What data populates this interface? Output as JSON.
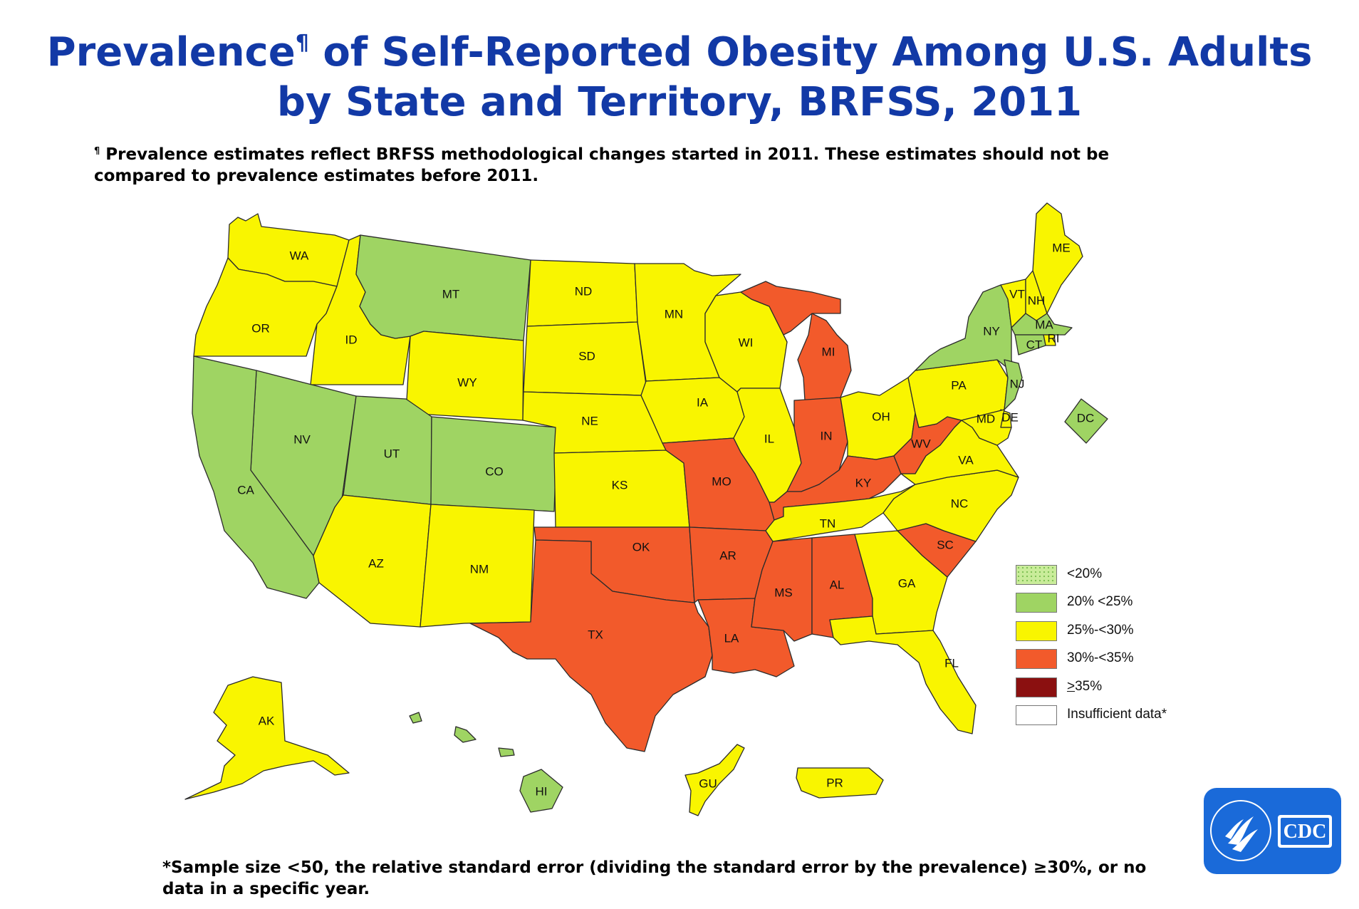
{
  "title": {
    "line1_a": "Prevalence",
    "line1_mark": "¶",
    "line1_b": " of Self-Reported Obesity Among U.S. Adults",
    "line2": "by State and Territory, BRFSS, 2011"
  },
  "footnote": {
    "mark": "¶",
    "text": " Prevalence estimates reflect BRFSS methodological changes started in 2011. These estimates should not be compared to prevalence estimates before 2011."
  },
  "bottom_note": "*Sample size <50, the relative standard error (dividing the standard error by the prevalence) ≥30%, or no data in a specific year.",
  "colors": {
    "lt20": "#c9ec9a",
    "c20_25": "#9fd463",
    "c25_30": "#f9f500",
    "c30_35": "#f25a2b",
    "ge35": "#8b1010",
    "insufficient": "#ffffff",
    "title_blue": "#1239a6",
    "cdc_blue": "#1a6ad9"
  },
  "legend": [
    {
      "key": "lt20",
      "label": "<20%"
    },
    {
      "key": "c20_25",
      "label": "20% <25%"
    },
    {
      "key": "c25_30",
      "label": "25%-<30%"
    },
    {
      "key": "c30_35",
      "label": "30%-<35%"
    },
    {
      "key": "ge35",
      "label": "≥35%"
    },
    {
      "key": "insufficient",
      "label": "Insufficient data*"
    }
  ],
  "states": {
    "WA": "c25_30",
    "OR": "c25_30",
    "CA": "c20_25",
    "ID": "c25_30",
    "NV": "c20_25",
    "MT": "c20_25",
    "WY": "c25_30",
    "UT": "c20_25",
    "CO": "c20_25",
    "AZ": "c25_30",
    "NM": "c25_30",
    "ND": "c25_30",
    "SD": "c25_30",
    "NE": "c25_30",
    "KS": "c25_30",
    "OK": "c30_35",
    "TX": "c30_35",
    "MN": "c25_30",
    "IA": "c25_30",
    "MO": "c30_35",
    "AR": "c30_35",
    "LA": "c30_35",
    "WI": "c25_30",
    "IL": "c25_30",
    "MI": "c30_35",
    "IN": "c30_35",
    "OH": "c25_30",
    "KY": "c30_35",
    "TN": "c25_30",
    "MS": "c30_35",
    "AL": "c30_35",
    "GA": "c25_30",
    "FL": "c25_30",
    "SC": "c30_35",
    "NC": "c25_30",
    "VA": "c25_30",
    "WV": "c30_35",
    "PA": "c25_30",
    "NY": "c20_25",
    "VT": "c25_30",
    "NH": "c25_30",
    "ME": "c25_30",
    "MA": "c20_25",
    "RI": "c25_30",
    "CT": "c20_25",
    "NJ": "c20_25",
    "DE": "c25_30",
    "MD": "c25_30",
    "DC": "c20_25",
    "AK": "c25_30",
    "HI": "c20_25",
    "GU": "c25_30",
    "PR": "c25_30"
  },
  "state_labels": {
    "WA": "WA",
    "OR": "OR",
    "CA": "CA",
    "ID": "ID",
    "NV": "NV",
    "MT": "MT",
    "WY": "WY",
    "UT": "UT",
    "CO": "CO",
    "AZ": "AZ",
    "NM": "NM",
    "ND": "ND",
    "SD": "SD",
    "NE": "NE",
    "KS": "KS",
    "OK": "OK",
    "TX": "TX",
    "MN": "MN",
    "IA": "IA",
    "MO": "MO",
    "AR": "AR",
    "LA": "LA",
    "WI": "WI",
    "IL": "IL",
    "MI": "MI",
    "IN": "IN",
    "OH": "OH",
    "KY": "KY",
    "TN": "TN",
    "MS": "MS",
    "AL": "AL",
    "GA": "GA",
    "FL": "FL",
    "SC": "SC",
    "NC": "NC",
    "VA": "VA",
    "WV": "WV",
    "PA": "PA",
    "NY": "NY",
    "VT": "VT",
    "NH": "NH",
    "ME": "ME",
    "MA": "MA",
    "RI": "RI",
    "CT": "CT",
    "NJ": "NJ",
    "DE": "DE",
    "MD": "MD",
    "DC": "DC",
    "AK": "AK",
    "HI": "HI",
    "GU": "GU",
    "PR": "PR"
  },
  "logo": {
    "text": "CDC"
  }
}
